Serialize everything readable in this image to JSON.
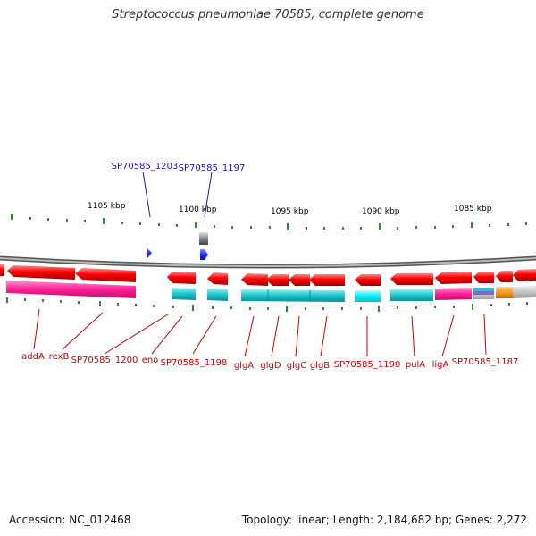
{
  "title": "Streptococcus pneumoniae 70585, complete genome",
  "footer": {
    "accession": "Accession: NC_012468",
    "summary": "Topology: linear; Length: 2,184,682 bp; Genes: 2,272"
  },
  "scale_labels": [
    "1105 kbp",
    "1100 kbp",
    "1095 kbp",
    "1090 kbp",
    "1085 kbp"
  ],
  "blue_labels": [
    "SP70585_1203",
    "SP70585_1197"
  ],
  "red_labels": [
    "addA",
    "rexB",
    "SP70585_1200",
    "eno",
    "SP70585_1198",
    "glgA",
    "glgD",
    "glgC",
    "glgB",
    "SP70585_1190",
    "pulA",
    "ligA",
    "SP70585_1187"
  ],
  "colors": {
    "red": "#ff0000",
    "pink": "#ff2a9c",
    "cyan": "#17c2c9",
    "blue": "#1a2cff",
    "green": "#2e8b2e",
    "gray": "#8a8a8a",
    "orange": "#ff9a1a",
    "label_red": "#cc0000",
    "label_blue": "#1a1aaa"
  }
}
